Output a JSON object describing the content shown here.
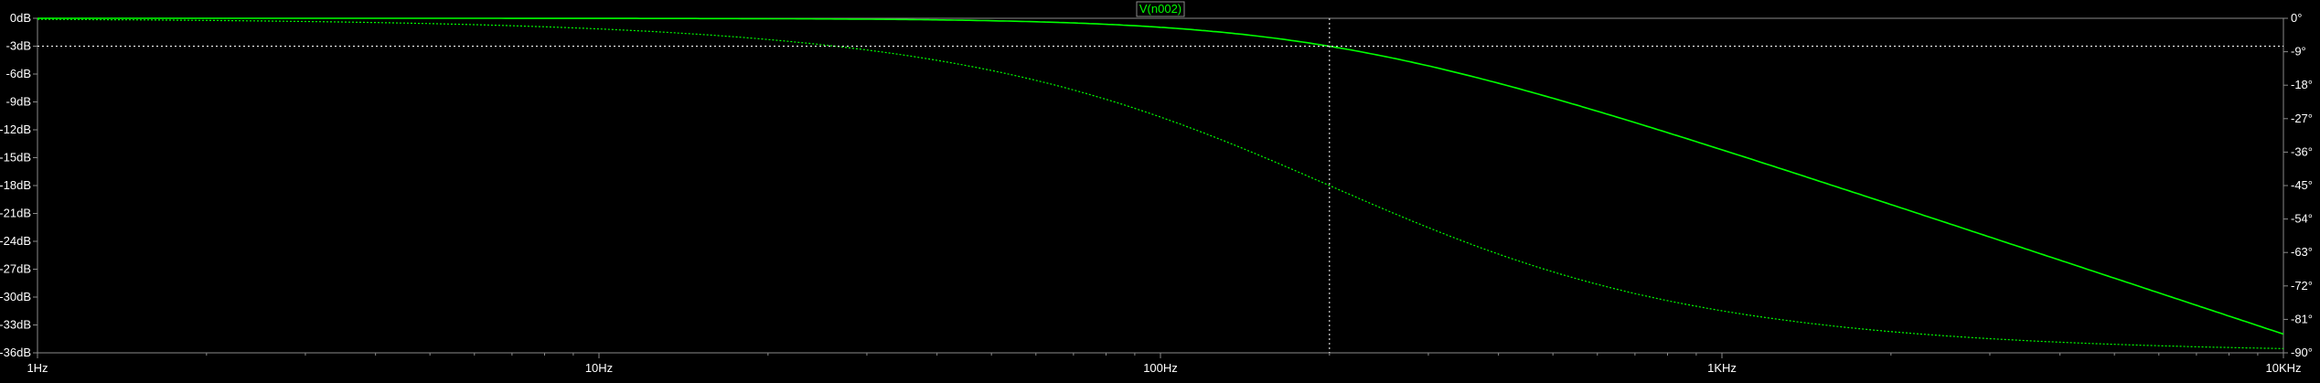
{
  "chart_data": {
    "type": "line",
    "title": "",
    "trace_label": "V(n002)",
    "x_scale": "log",
    "xlim": [
      1,
      10000
    ],
    "x_ticks": [
      {
        "value": 1,
        "label": "1Hz"
      },
      {
        "value": 10,
        "label": "10Hz"
      },
      {
        "value": 100,
        "label": "100Hz"
      },
      {
        "value": 1000,
        "label": "1KHz"
      },
      {
        "value": 10000,
        "label": "10KHz"
      }
    ],
    "y_left": {
      "unit": "dB",
      "range": [
        -36,
        0
      ],
      "ticks": [
        {
          "value": 0,
          "label": "0dB"
        },
        {
          "value": -3,
          "label": "-3dB"
        },
        {
          "value": -6,
          "label": "-6dB"
        },
        {
          "value": -9,
          "label": "-9dB"
        },
        {
          "value": -12,
          "label": "-12dB"
        },
        {
          "value": -15,
          "label": "-15dB"
        },
        {
          "value": -18,
          "label": "-18dB"
        },
        {
          "value": -21,
          "label": "-21dB"
        },
        {
          "value": -24,
          "label": "-24dB"
        },
        {
          "value": -27,
          "label": "-27dB"
        },
        {
          "value": -30,
          "label": "-30dB"
        },
        {
          "value": -33,
          "label": "-33dB"
        },
        {
          "value": -36,
          "label": "-36dB"
        }
      ]
    },
    "y_right": {
      "unit": "degrees",
      "range": [
        -90,
        0
      ],
      "ticks": [
        {
          "value": 0,
          "label": "0°"
        },
        {
          "value": -9,
          "label": "-9°"
        },
        {
          "value": -18,
          "label": "-18°"
        },
        {
          "value": -27,
          "label": "-27°"
        },
        {
          "value": -36,
          "label": "-36°"
        },
        {
          "value": -45,
          "label": "-45°"
        },
        {
          "value": -54,
          "label": "-54°"
        },
        {
          "value": -63,
          "label": "-63°"
        },
        {
          "value": -72,
          "label": "-72°"
        },
        {
          "value": -81,
          "label": "-81°"
        },
        {
          "value": -90,
          "label": "-90°"
        }
      ]
    },
    "series": [
      {
        "quantity": "magnitude",
        "axis": "left",
        "line_style": "solid",
        "x": [
          1,
          10,
          20,
          50,
          100,
          150,
          200,
          300,
          500,
          1000,
          2000,
          5000,
          10000
        ],
        "values": [
          0,
          -0.01,
          -0.04,
          -0.26,
          -0.97,
          -1.94,
          -3.01,
          -5.12,
          -8.6,
          -14.15,
          -20.04,
          -27.96,
          -33.98
        ]
      },
      {
        "quantity": "phase",
        "axis": "right",
        "line_style": "dotted",
        "x": [
          1,
          10,
          20,
          50,
          100,
          150,
          200,
          300,
          500,
          1000,
          2000,
          5000,
          10000
        ],
        "values": [
          -0.29,
          -2.86,
          -5.71,
          -14.04,
          -26.57,
          -36.87,
          -45,
          -56.31,
          -68.2,
          -78.69,
          -84.29,
          -87.71,
          -88.85
        ]
      }
    ],
    "cursor": {
      "x": 200,
      "y_db": -3
    },
    "grid": false,
    "colors": {
      "background": "#000000",
      "trace": "#00ff00",
      "axis": "#8a8a8a",
      "text": "#ffffff",
      "cursor": "#ffffff"
    }
  }
}
